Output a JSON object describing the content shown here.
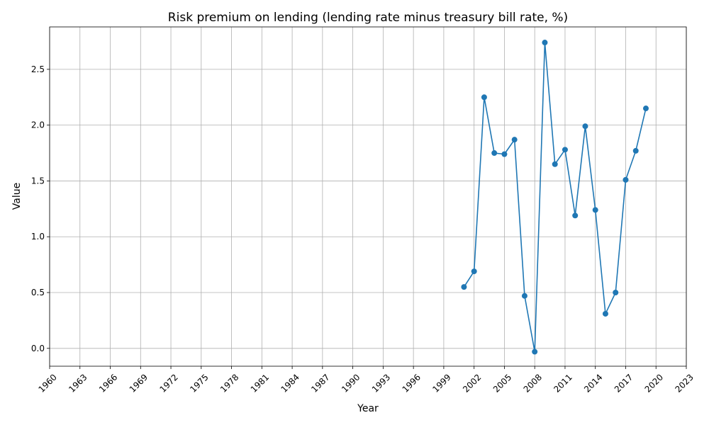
{
  "chart_data": {
    "type": "line",
    "title": "Risk premium on lending (lending rate minus treasury bill rate, %)",
    "xlabel": "Year",
    "ylabel": "Value",
    "xlim": [
      1960,
      2023
    ],
    "ylim": [
      -0.16,
      2.88
    ],
    "grid": true,
    "x_ticks": [
      1960,
      1963,
      1966,
      1969,
      1972,
      1975,
      1978,
      1981,
      1984,
      1987,
      1990,
      1993,
      1996,
      1999,
      2002,
      2005,
      2008,
      2011,
      2014,
      2017,
      2020,
      2023
    ],
    "y_ticks": [
      "0.0",
      "0.5",
      "1.0",
      "1.5",
      "2.0",
      "2.5"
    ],
    "series": [
      {
        "color": "#1f77b4",
        "marker": "circle",
        "x": [
          2001,
          2002,
          2003,
          2004,
          2005,
          2006,
          2007,
          2008,
          2009,
          2010,
          2011,
          2012,
          2013,
          2014,
          2015,
          2016,
          2017,
          2018,
          2019
        ],
        "values": [
          0.55,
          0.69,
          2.25,
          1.75,
          1.74,
          1.87,
          0.47,
          -0.03,
          2.74,
          1.65,
          1.78,
          1.19,
          1.99,
          1.24,
          0.31,
          0.5,
          1.51,
          1.77,
          2.15
        ]
      }
    ]
  }
}
